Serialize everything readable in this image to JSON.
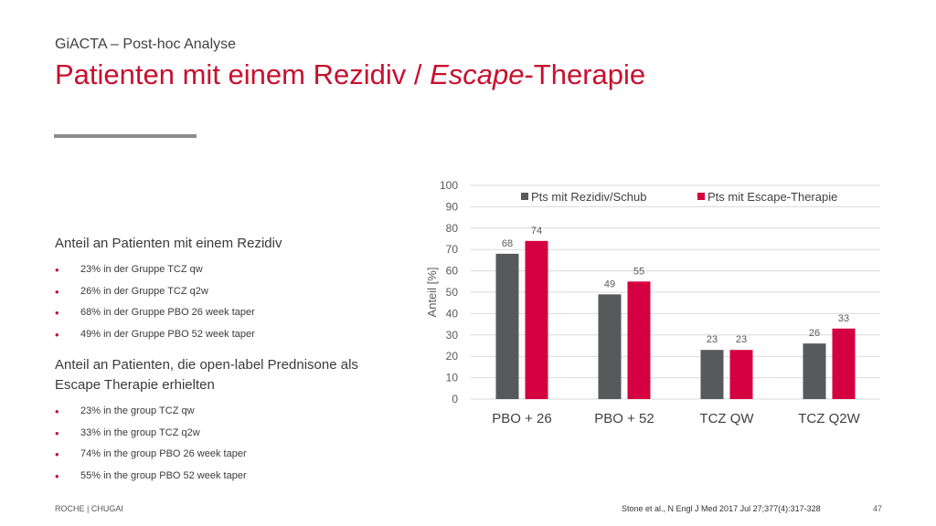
{
  "header": {
    "subtitle": "GiACTA – Post-hoc Analyse",
    "title_part1": "Patienten mit einem Rezidiv / ",
    "title_italic": "Escape",
    "title_part2": "-Therapie"
  },
  "left_text": {
    "block1_heading": "Anteil an Patienten mit einem Rezidiv",
    "block1_items": [
      "23% in der Gruppe TCZ qw",
      "26% in der Gruppe TCZ q2w",
      "68% in der Gruppe PBO 26 week taper",
      "49% in der Gruppe PBO 52 week taper"
    ],
    "block2_heading": "Anteil an Patienten, die open-label Prednisone als Escape Therapie erhielten",
    "block2_items": [
      "23% in the group TCZ qw",
      "33% in the group TCZ q2w",
      "74% in the group PBO 26 week taper",
      "55% in the group PBO 52 week taper"
    ]
  },
  "footer": {
    "left": "ROCHE | CHUGAI",
    "source": "Stone et al., N Engl J Med 2017 Jul 27;377(4):317-328",
    "page": "47"
  },
  "colors": {
    "accent": "#c8102e",
    "series1": "#58595b",
    "series2": "#d5003f"
  },
  "chart_data": {
    "type": "bar",
    "categories": [
      "PBO + 26",
      "PBO + 52",
      "TCZ QW",
      "TCZ Q2W"
    ],
    "series": [
      {
        "name": "Pts mit Rezidiv/Schub",
        "values": [
          68,
          49,
          23,
          26
        ]
      },
      {
        "name": "Pts mit Escape-Therapie",
        "values": [
          74,
          55,
          23,
          33
        ]
      }
    ],
    "title": "",
    "xlabel": "",
    "ylabel": "Anteil [%]",
    "ylim": [
      0,
      100
    ],
    "yticks": [
      0,
      10,
      20,
      30,
      40,
      50,
      60,
      70,
      80,
      90,
      100
    ],
    "grid": true,
    "legend": "top"
  }
}
